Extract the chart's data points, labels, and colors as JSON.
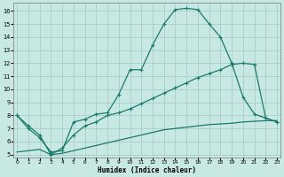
{
  "xlabel": "Humidex (Indice chaleur)",
  "bg_color": "#c8e8e4",
  "grid_color": "#a8ceca",
  "line_color": "#1a7a6e",
  "xlim": [
    -0.3,
    23.3
  ],
  "ylim": [
    4.8,
    16.6
  ],
  "xticks": [
    0,
    1,
    2,
    3,
    4,
    5,
    6,
    7,
    8,
    9,
    10,
    11,
    12,
    13,
    14,
    15,
    16,
    17,
    18,
    19,
    20,
    21,
    22,
    23
  ],
  "yticks": [
    5,
    6,
    7,
    8,
    9,
    10,
    11,
    12,
    13,
    14,
    15,
    16
  ],
  "curve1_x": [
    0,
    1,
    2,
    3,
    4,
    5,
    6,
    7,
    8,
    9,
    10,
    11,
    12,
    13,
    14,
    15,
    16,
    17,
    18,
    19,
    20,
    21,
    22,
    23
  ],
  "curve1_y": [
    8.0,
    7.0,
    6.3,
    5.2,
    5.3,
    7.5,
    7.7,
    8.1,
    8.2,
    9.6,
    11.5,
    11.5,
    13.4,
    15.0,
    16.1,
    16.2,
    16.1,
    15.0,
    14.0,
    12.0,
    9.4,
    8.1,
    7.8,
    7.5
  ],
  "curve2_x": [
    0,
    1,
    2,
    3,
    4,
    5,
    6,
    7,
    8,
    9,
    10,
    11,
    12,
    13,
    14,
    15,
    16,
    17,
    18,
    19,
    20,
    21,
    22,
    23
  ],
  "curve2_y": [
    8.0,
    7.2,
    6.5,
    5.0,
    5.5,
    6.5,
    7.2,
    7.5,
    8.0,
    8.2,
    8.5,
    8.9,
    9.3,
    9.7,
    10.1,
    10.5,
    10.9,
    11.2,
    11.5,
    11.9,
    12.0,
    11.9,
    7.8,
    7.5
  ],
  "curve3_x": [
    0,
    1,
    2,
    3,
    4,
    5,
    6,
    7,
    8,
    9,
    10,
    11,
    12,
    13,
    14,
    15,
    16,
    17,
    18,
    19,
    20,
    21,
    22,
    23
  ],
  "curve3_y": [
    5.2,
    5.3,
    5.4,
    5.0,
    5.1,
    5.3,
    5.5,
    5.7,
    5.9,
    6.1,
    6.3,
    6.5,
    6.7,
    6.9,
    7.0,
    7.1,
    7.2,
    7.3,
    7.35,
    7.4,
    7.5,
    7.55,
    7.6,
    7.6
  ]
}
